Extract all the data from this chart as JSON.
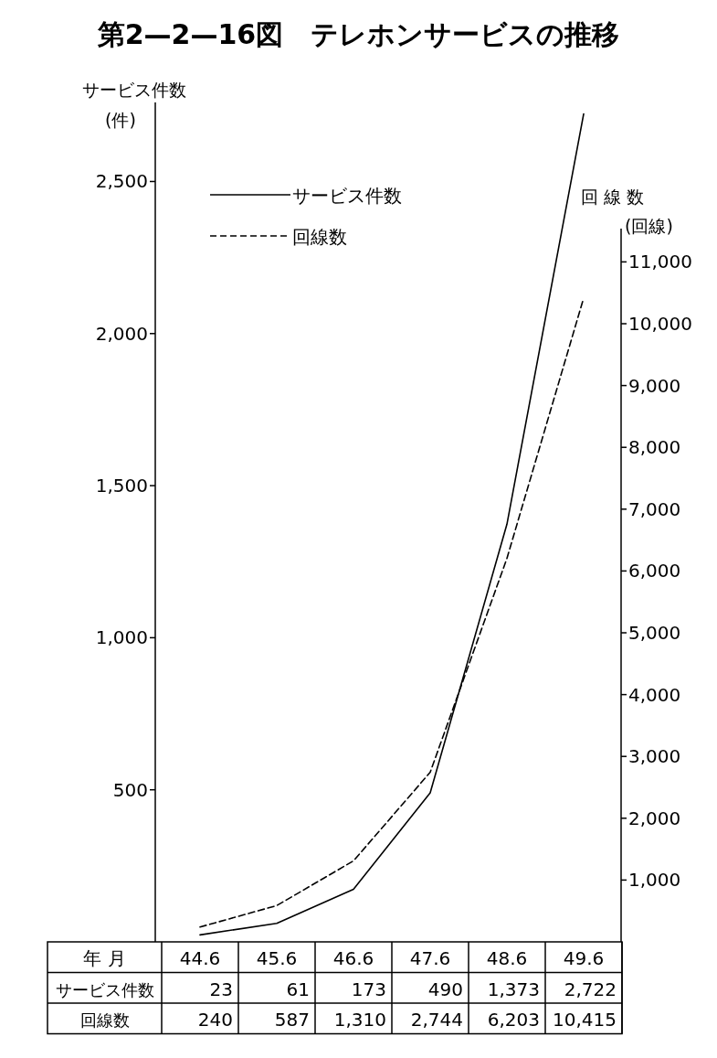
{
  "chart_data": {
    "type": "line",
    "title": "第2—2—16図　テレホンサービスの推移",
    "xlabel": "年 月",
    "ylabel": "サービス件数\n(件)",
    "y2label": "回 線 数\n(回線)",
    "categories": [
      "44.6",
      "45.6",
      "46.6",
      "47.6",
      "48.6",
      "49.6"
    ],
    "series": [
      {
        "name": "サービス件数",
        "color": "#000000",
        "line_style": "solid",
        "values": [
          23,
          61,
          173,
          490,
          1373,
          2722
        ],
        "value_labels": [
          "23",
          "61",
          "173",
          "490",
          "1,373",
          "2,722"
        ]
      },
      {
        "name": "回線数",
        "color": "#000000",
        "line_style": "dashed",
        "axis": "y2",
        "values": [
          240,
          587,
          1310,
          2744,
          6203,
          10415
        ],
        "value_labels": [
          "240",
          "587",
          "1,310",
          "2,744",
          "6,203",
          "10,415"
        ]
      }
    ],
    "ylim": [
      0,
      2760
    ],
    "yticks": [
      {
        "value": 500,
        "label": "500"
      },
      {
        "value": 1000,
        "label": "1,000"
      },
      {
        "value": 1500,
        "label": "1,500"
      },
      {
        "value": 2000,
        "label": "2,000"
      },
      {
        "value": 2500,
        "label": "2,500"
      }
    ],
    "y2lim": [
      0,
      13580
    ],
    "y2ticks": [
      {
        "value": 1000,
        "label": "1,000"
      },
      {
        "value": 2000,
        "label": "2,000"
      },
      {
        "value": 3000,
        "label": "3,000"
      },
      {
        "value": 4000,
        "label": "4,000"
      },
      {
        "value": 5000,
        "label": "5,000"
      },
      {
        "value": 6000,
        "label": "6,000"
      },
      {
        "value": 7000,
        "label": "7,000"
      },
      {
        "value": 8000,
        "label": "8,000"
      },
      {
        "value": 9000,
        "label": "9,000"
      },
      {
        "value": 10000,
        "label": "10,000"
      },
      {
        "value": 11000,
        "label": "11,000"
      }
    ],
    "grid": false,
    "legend": "top left",
    "marker": "none"
  }
}
